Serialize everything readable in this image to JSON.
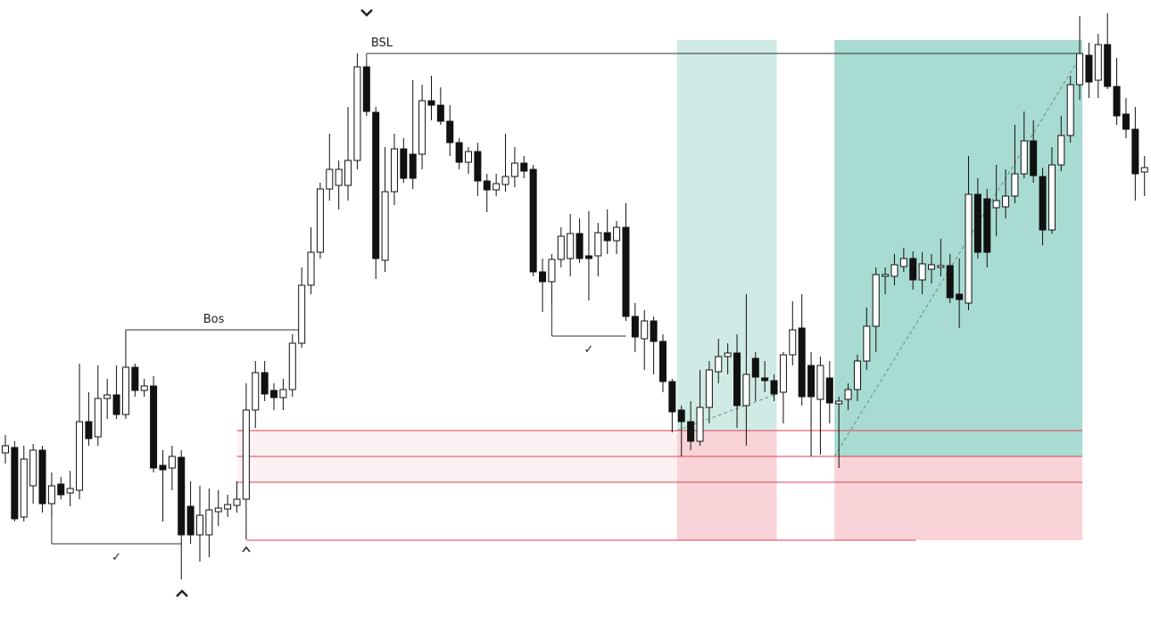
{
  "chart_data": {
    "type": "candlestick",
    "open": [
      192,
      198,
      120,
      155,
      195,
      135,
      157,
      147,
      150,
      227,
      210,
      253,
      257,
      235,
      288,
      262,
      267,
      178,
      175,
      187,
      132,
      100,
      100,
      126,
      129,
      133,
      140,
      240,
      282,
      262,
      254,
      263,
      315,
      380,
      417,
      488,
      492,
      492,
      520,
      625,
      574,
      408,
      485,
      533,
      527,
      527,
      587,
      582,
      564,
      540,
      518,
      530,
      497,
      487,
      493,
      502,
      517,
      510,
      395,
      384,
      409,
      410,
      438,
      413,
      413,
      439,
      430,
      445,
      345,
      320,
      340,
      317,
      272,
      240,
      227,
      205,
      243,
      283,
      300,
      304,
      245,
      298,
      276,
      273,
      260,
      302,
      332,
      290,
      252,
      276,
      247,
      252,
      263,
      295,
      334,
      390,
      390,
      401,
      410,
      386,
      398,
      400,
      402,
      370,
      360,
      482,
      477,
      467,
      468,
      480,
      505,
      542,
      502,
      442,
      515,
      548,
      605,
      638,
      610,
      650,
      603,
      572,
      555,
      507
    ],
    "high": [
      212,
      205,
      200,
      202,
      200,
      170,
      165,
      172,
      292,
      260,
      290,
      275,
      290,
      330,
      292,
      275,
      278,
      195,
      200,
      195,
      160,
      155,
      152,
      150,
      145,
      160,
      270,
      295,
      295,
      270,
      275,
      325,
      400,
      445,
      495,
      550,
      520,
      580,
      640,
      630,
      580,
      535,
      550,
      545,
      610,
      605,
      615,
      602,
      582,
      545,
      535,
      540,
      505,
      505,
      550,
      535,
      525,
      515,
      410,
      415,
      445,
      460,
      455,
      463,
      450,
      465,
      452,
      472,
      360,
      352,
      345,
      325,
      275,
      245,
      250,
      285,
      295,
      320,
      315,
      325,
      370,
      305,
      295,
      280,
      305,
      362,
      370,
      305,
      300,
      295,
      255,
      270,
      302,
      355,
      400,
      400,
      415,
      422,
      418,
      417,
      415,
      432,
      415,
      410,
      525,
      500,
      488,
      515,
      510,
      560,
      575,
      565,
      512,
      535,
      570,
      615,
      682,
      652,
      662,
      685,
      635,
      590,
      580,
      525
    ],
    "low": [
      180,
      115,
      115,
      135,
      125,
      120,
      140,
      132,
      140,
      200,
      200,
      230,
      230,
      230,
      255,
      255,
      170,
      115,
      150,
      50,
      90,
      70,
      75,
      110,
      120,
      125,
      95,
      220,
      250,
      240,
      240,
      255,
      310,
      370,
      410,
      475,
      465,
      475,
      510,
      570,
      387,
      395,
      470,
      495,
      488,
      510,
      565,
      560,
      525,
      510,
      505,
      480,
      462,
      480,
      485,
      490,
      500,
      390,
      350,
      358,
      400,
      390,
      405,
      363,
      390,
      415,
      415,
      340,
      305,
      285,
      280,
      260,
      215,
      188,
      195,
      200,
      225,
      270,
      280,
      220,
      200,
      250,
      260,
      250,
      225,
      290,
      245,
      188,
      190,
      225,
      175,
      240,
      250,
      285,
      305,
      370,
      380,
      395,
      375,
      370,
      382,
      390,
      360,
      332,
      352,
      410,
      400,
      435,
      455,
      472,
      500,
      495,
      425,
      438,
      508,
      540,
      588,
      590,
      590,
      600,
      560,
      545,
      475,
      480
    ],
    "close": [
      200,
      118,
      185,
      195,
      135,
      155,
      145,
      152,
      227,
      208,
      253,
      257,
      235,
      288,
      262,
      267,
      175,
      173,
      188,
      100,
      100,
      122,
      128,
      130,
      134,
      140,
      240,
      282,
      258,
      254,
      263,
      315,
      380,
      417,
      488,
      510,
      510,
      520,
      625,
      575,
      410,
      485,
      533,
      500,
      500,
      587,
      582,
      564,
      540,
      518,
      530,
      497,
      487,
      494,
      502,
      517,
      508,
      395,
      384,
      409,
      435,
      438,
      410,
      410,
      439,
      430,
      445,
      345,
      322,
      340,
      317,
      272,
      238,
      227,
      205,
      243,
      285,
      300,
      304,
      245,
      280,
      277,
      273,
      258,
      302,
      330,
      255,
      255,
      290,
      248,
      250,
      263,
      295,
      334,
      392,
      392,
      403,
      410,
      386,
      404,
      403,
      402,
      366,
      364,
      482,
      417,
      417,
      475,
      480,
      505,
      542,
      503,
      442,
      515,
      548,
      605,
      640,
      608,
      650,
      603,
      570,
      555,
      505,
      512
    ],
    "ylim": [
      0,
      700
    ],
    "levels": [
      {
        "level": 217,
        "from": 25,
        "to": 116
      },
      {
        "level": 188,
        "from": 25,
        "to": 116
      },
      {
        "level": 159,
        "from": 25,
        "to": 116
      },
      {
        "level": 94,
        "from": 26,
        "to": 98
      }
    ],
    "positions": [
      {
        "start": 73,
        "end": 83,
        "entry": 217,
        "target": 655,
        "stop": 94
      },
      {
        "start": 90,
        "end": 116,
        "entry": 188,
        "target": 655,
        "stop": 94
      }
    ],
    "annotations": [
      {
        "text": "Bos",
        "from": 13,
        "to": 32,
        "level": 330
      },
      {
        "text": "BSL",
        "from": 39,
        "to": 116,
        "level": 640
      },
      {
        "text": "✓",
        "from": 5,
        "to": 19,
        "level": 90
      },
      {
        "text": "✓",
        "from": 59,
        "to": 67,
        "level": 323
      }
    ]
  }
}
